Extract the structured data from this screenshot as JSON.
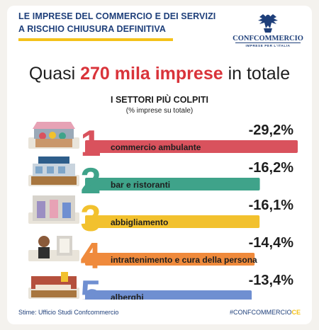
{
  "header": {
    "title_line1": "LE IMPRESE DEL COMMERCIO E DEI SERVIZI",
    "title_line2": "A RISCHIO CHIUSURA DEFINITIVA",
    "accent_color": "#f4c21a",
    "title_color": "#1e3f7a"
  },
  "logo": {
    "icon": "eagle-emblem-icon",
    "name": "CONFCOMMERCIO",
    "subtitle": "IMPRESE PER L'ITALIA"
  },
  "headline": {
    "prefix": "Quasi",
    "number": "270 mila imprese",
    "suffix": "in totale"
  },
  "chart_data": {
    "type": "bar",
    "title": "I SETTORI PIÙ COLPITI",
    "subtitle": "(% imprese su totale)",
    "categories": [
      "commercio ambulante",
      "bar e ristoranti",
      "abbigliamento",
      "intrattenimento e cura della persona",
      "alberghi"
    ],
    "ranks": [
      "1",
      "2",
      "3",
      "4",
      "5"
    ],
    "values": [
      -29.2,
      -16.2,
      -16.1,
      -14.4,
      -13.4
    ],
    "value_labels": [
      "-29,2%",
      "-16,2%",
      "-16,1%",
      "-14,4%",
      "-13,4%"
    ],
    "colors": [
      "#d9525d",
      "#3fa38a",
      "#f2c12e",
      "#ef8a3c",
      "#6f8fd1"
    ],
    "icons": [
      "street-market-stall-icon",
      "bar-restaurant-icon",
      "clothing-store-icon",
      "hair-salon-icon",
      "hotel-room-icon"
    ]
  },
  "footer": {
    "source": "Stime: Ufficio Studi Confcommercio",
    "hashtag_main": "#CONFCOMMERCIO",
    "hashtag_accent": "CE"
  }
}
